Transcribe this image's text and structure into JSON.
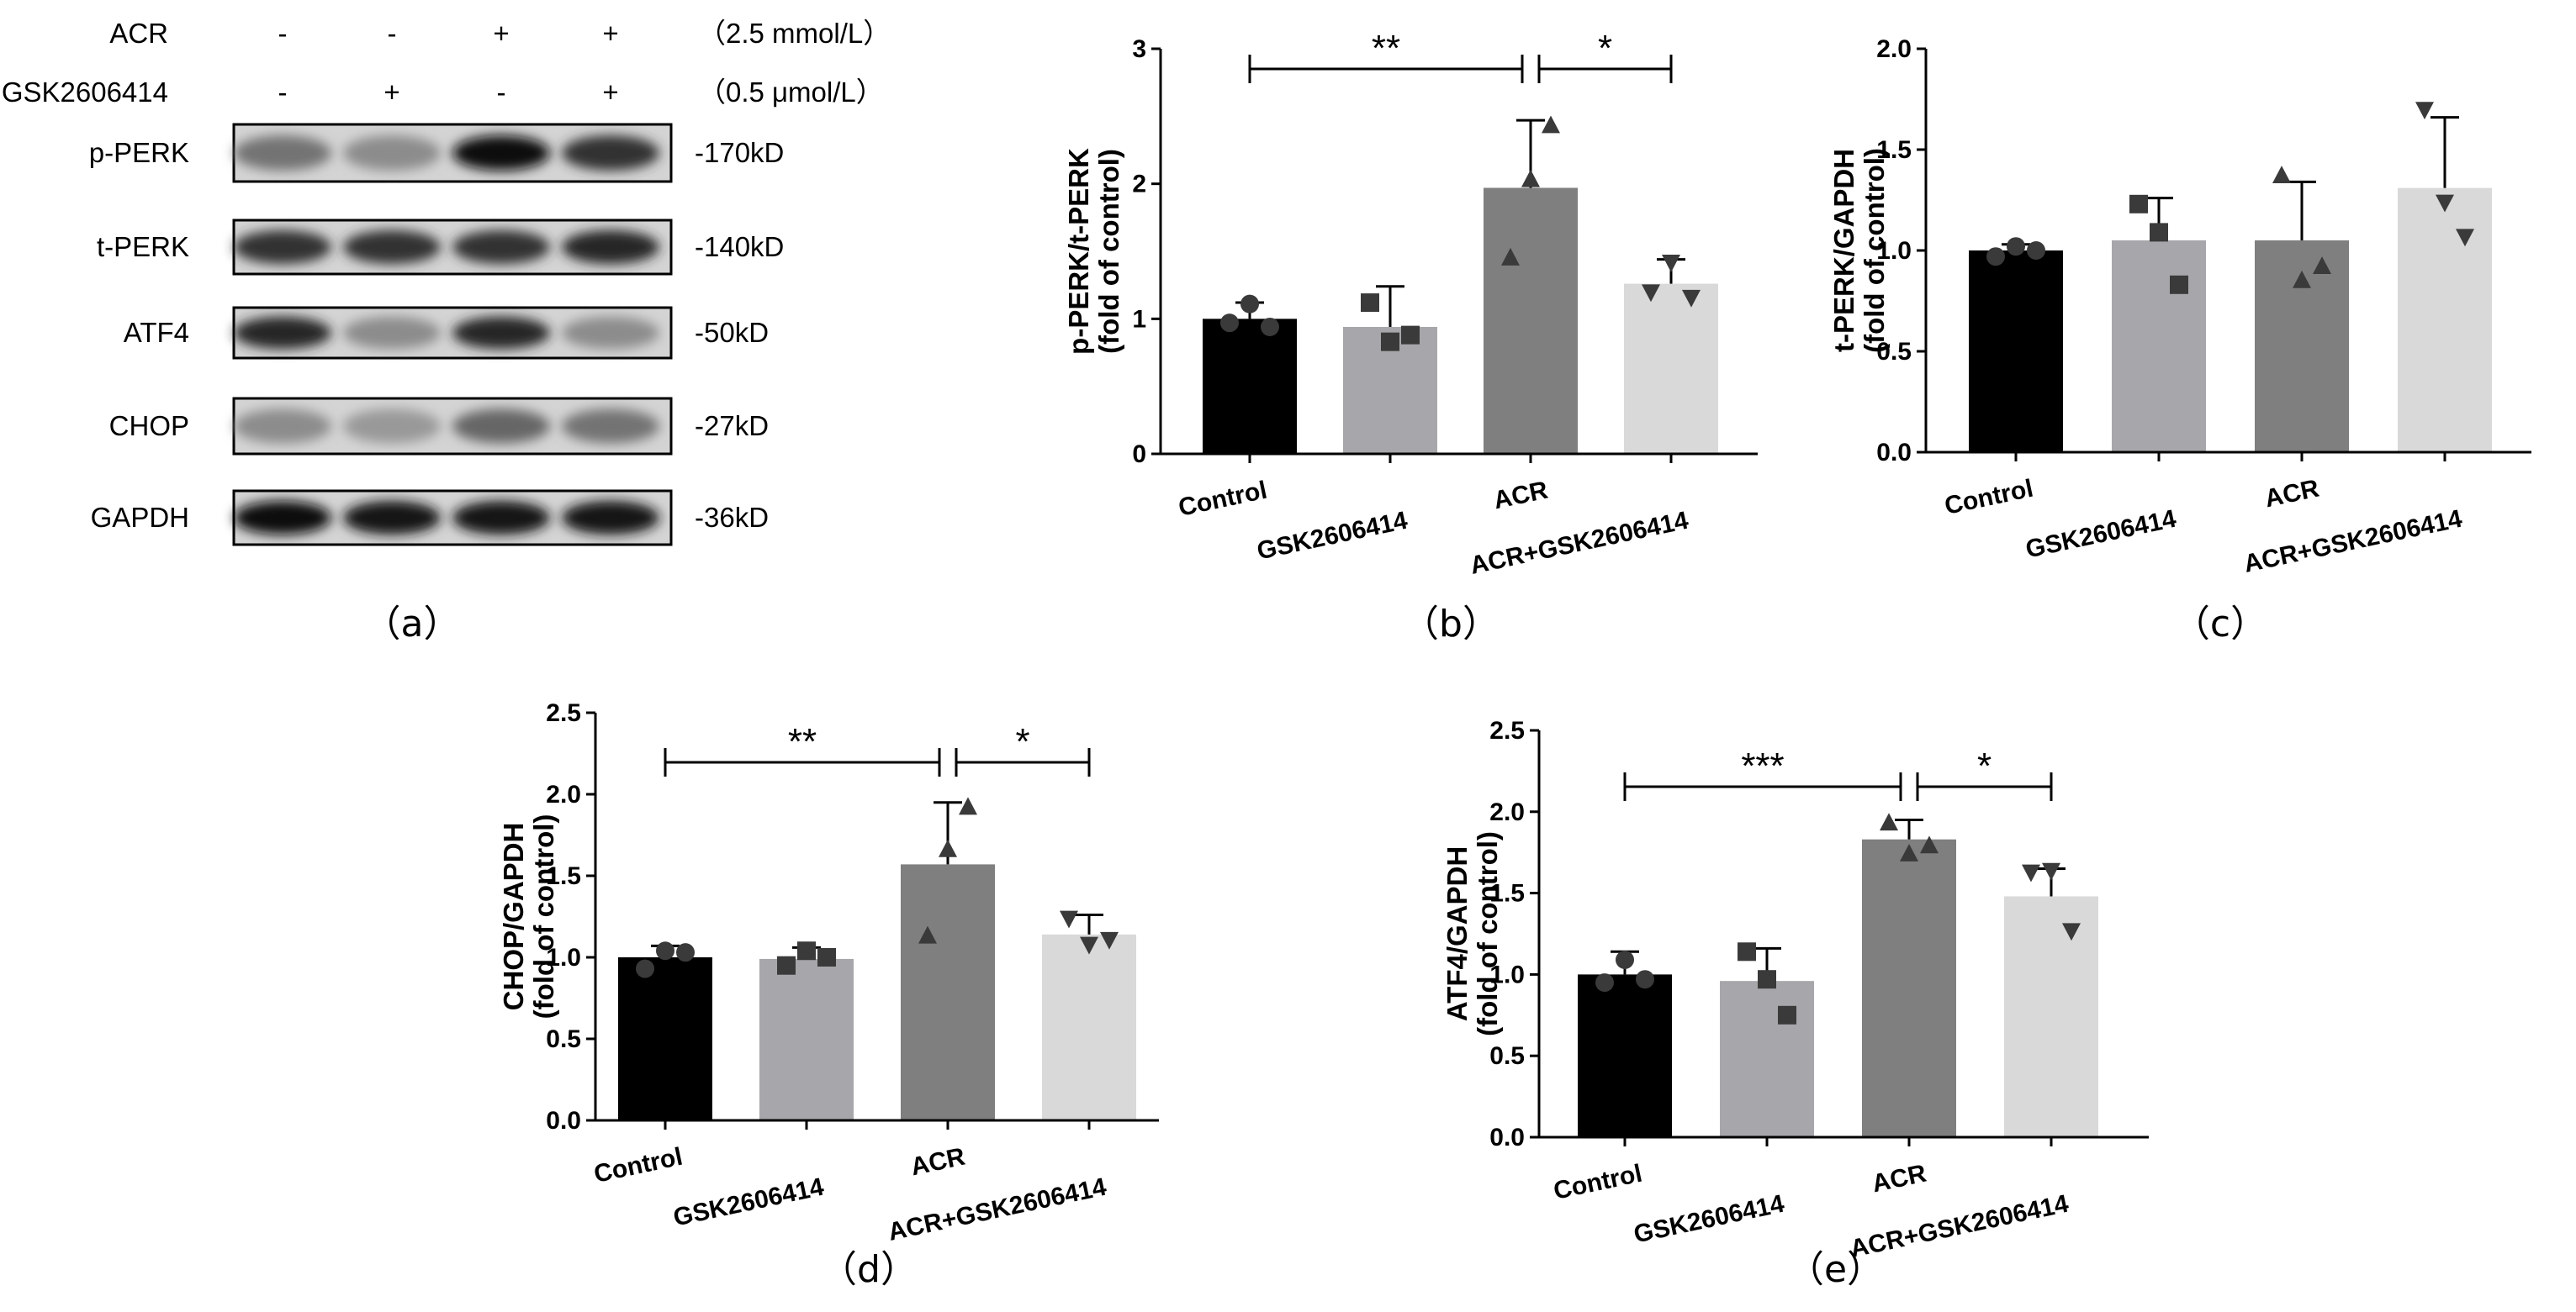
{
  "western_blot": {
    "panel_label": "（a）",
    "treatments": [
      {
        "name": "ACR",
        "signs": [
          "-",
          "-",
          "+",
          "+"
        ],
        "dose": "（2.5 mmol/L）"
      },
      {
        "name": "GSK2606414",
        "signs": [
          "-",
          "+",
          "-",
          "+"
        ],
        "dose": "（0.5 μmol/L）"
      }
    ],
    "blots": [
      {
        "name": "p-PERK",
        "kd": "-170kD",
        "intensity": [
          0.55,
          0.45,
          0.95,
          0.8
        ]
      },
      {
        "name": "t-PERK",
        "kd": "-140kD",
        "intensity": [
          0.8,
          0.8,
          0.8,
          0.85
        ]
      },
      {
        "name": "ATF4",
        "kd": "-50kD",
        "intensity": [
          0.85,
          0.45,
          0.85,
          0.45
        ]
      },
      {
        "name": "CHOP",
        "kd": "-27kD",
        "intensity": [
          0.45,
          0.4,
          0.6,
          0.55
        ]
      },
      {
        "name": "GAPDH",
        "kd": "-36kD",
        "intensity": [
          0.95,
          0.9,
          0.9,
          0.9
        ]
      }
    ]
  },
  "colors": {
    "control": "#000000",
    "gsk": "#a7a7ab",
    "acr": "#7f7f7f",
    "acr_gsk": "#d9d9d9"
  },
  "chart_data": [
    {
      "id": "b",
      "type": "bar",
      "panel_label": "（b）",
      "categories": [
        "Control",
        "GSK2606414",
        "ACR",
        "ACR+GSK2606414"
      ],
      "values": [
        1.0,
        0.94,
        1.97,
        1.26
      ],
      "errors": [
        0.12,
        0.3,
        0.5,
        0.18
      ],
      "points": [
        [
          0.97,
          1.11,
          0.94
        ],
        [
          1.12,
          0.83,
          0.88
        ],
        [
          1.45,
          2.03,
          2.43
        ],
        [
          1.2,
          1.42,
          1.16
        ]
      ],
      "markers": [
        "circle",
        "square",
        "triangle",
        "triangle-down"
      ],
      "ylabel": "p-PERK/t-PERK",
      "ylabel2": "(fold of control)",
      "ylim": [
        0,
        3
      ],
      "yticks": [
        "0",
        "1",
        "2",
        "3"
      ],
      "significance": [
        {
          "from": 0,
          "to": 2,
          "label": "**"
        },
        {
          "from": 2,
          "to": 3,
          "label": "*"
        }
      ]
    },
    {
      "id": "c",
      "type": "bar",
      "panel_label": "（c）",
      "categories": [
        "Control",
        "GSK2606414",
        "ACR",
        "ACR+GSK2606414"
      ],
      "values": [
        1.0,
        1.05,
        1.05,
        1.31
      ],
      "errors": [
        0.03,
        0.21,
        0.29,
        0.35
      ],
      "points": [
        [
          0.97,
          1.02,
          1.0
        ],
        [
          1.23,
          1.09,
          0.83
        ],
        [
          1.37,
          0.85,
          0.92
        ],
        [
          1.7,
          1.24,
          1.07
        ]
      ],
      "markers": [
        "circle",
        "square",
        "triangle",
        "triangle-down"
      ],
      "ylabel": "t-PERK/GAPDH",
      "ylabel2": "(fold of control)",
      "ylim": [
        0,
        2.0
      ],
      "yticks": [
        "0.0",
        "0.5",
        "1.0",
        "1.5",
        "2.0"
      ],
      "significance": []
    },
    {
      "id": "d",
      "type": "bar",
      "panel_label": "（d）",
      "categories": [
        "Control",
        "GSK2606414",
        "ACR",
        "ACR+GSK2606414"
      ],
      "values": [
        1.0,
        0.99,
        1.57,
        1.14
      ],
      "errors": [
        0.07,
        0.07,
        0.38,
        0.12
      ],
      "points": [
        [
          0.93,
          1.04,
          1.03
        ],
        [
          0.95,
          1.04,
          1.0
        ],
        [
          1.13,
          1.66,
          1.92
        ],
        [
          1.24,
          1.08,
          1.11
        ]
      ],
      "markers": [
        "circle",
        "square",
        "triangle",
        "triangle-down"
      ],
      "ylabel": "CHOP/GAPDH",
      "ylabel2": "(fold of control)",
      "ylim": [
        0,
        2.5
      ],
      "yticks": [
        "0.0",
        "0.5",
        "1.0",
        "1.5",
        "2.0",
        "2.5"
      ],
      "significance": [
        {
          "from": 0,
          "to": 2,
          "label": "**"
        },
        {
          "from": 2,
          "to": 3,
          "label": "*"
        }
      ]
    },
    {
      "id": "e",
      "type": "bar",
      "panel_label": "（e）",
      "categories": [
        "Control",
        "GSK2606414",
        "ACR",
        "ACR+GSK2606414"
      ],
      "values": [
        1.0,
        0.96,
        1.83,
        1.48
      ],
      "errors": [
        0.14,
        0.2,
        0.12,
        0.17
      ],
      "points": [
        [
          0.95,
          1.09,
          0.97
        ],
        [
          1.14,
          0.97,
          0.75
        ],
        [
          1.93,
          1.74,
          1.79
        ],
        [
          1.63,
          1.64,
          1.27
        ]
      ],
      "markers": [
        "circle",
        "square",
        "triangle",
        "triangle-down"
      ],
      "ylabel": "ATF4/GAPDH",
      "ylabel2": "(fold of control)",
      "ylim": [
        0,
        2.5
      ],
      "yticks": [
        "0.0",
        "0.5",
        "1.0",
        "1.5",
        "2.0",
        "2.5"
      ],
      "significance": [
        {
          "from": 0,
          "to": 2,
          "label": "***"
        },
        {
          "from": 2,
          "to": 3,
          "label": "*"
        }
      ]
    }
  ]
}
